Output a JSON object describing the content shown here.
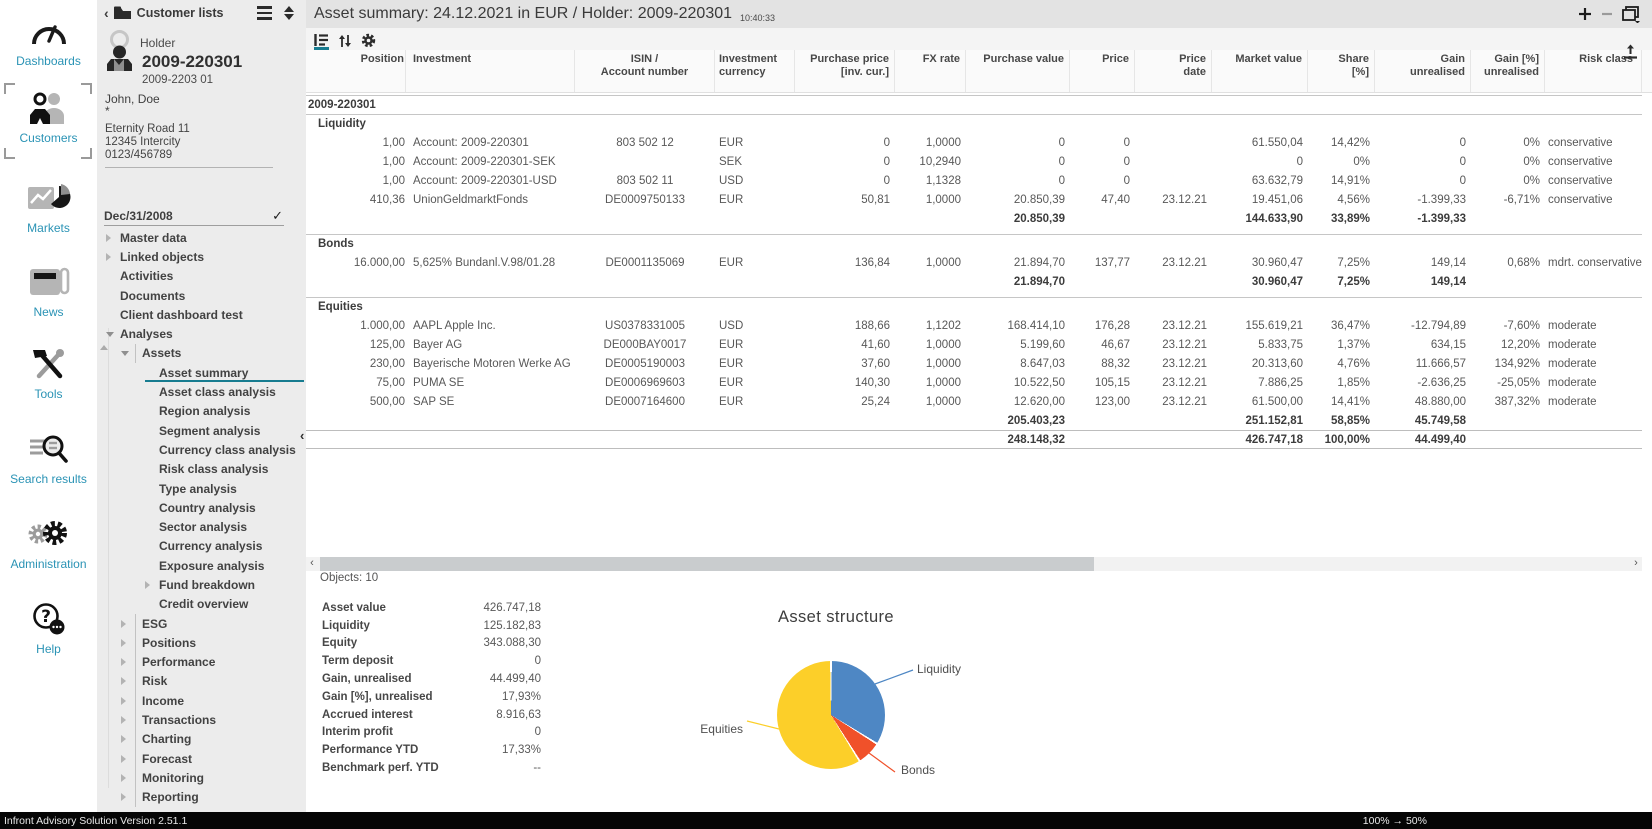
{
  "app": {
    "statusbar_left": "Infront Advisory Solution Version 2.51.1",
    "statusbar_right": "100% → 50%",
    "accent_teal": "#177c90",
    "rail_label_color": "#2a93b5"
  },
  "rail": {
    "active": "Customers",
    "items": [
      {
        "label": "Dashboards",
        "icon": "gauge-icon"
      },
      {
        "label": "Customers",
        "icon": "customers-icon"
      },
      {
        "label": "Markets",
        "icon": "markets-icon"
      },
      {
        "label": "News",
        "icon": "news-icon"
      },
      {
        "label": "Tools",
        "icon": "tools-icon"
      },
      {
        "label": "Search results",
        "icon": "search-icon"
      },
      {
        "label": "Administration",
        "icon": "gears-icon"
      },
      {
        "label": "Help",
        "icon": "help-icon"
      }
    ]
  },
  "customer_panel": {
    "header": {
      "title": "Customer lists"
    },
    "holder": {
      "type_label": "Holder",
      "id": "2009-220301",
      "subid": "2009-2203 01",
      "name": "John, Doe",
      "star": "*",
      "address1": "Eternity Road 11",
      "address2": "12345 Intercity",
      "phone": "0123/456789"
    },
    "date_item": {
      "label": "Dec/31/2008",
      "checked": "✓"
    },
    "tree": [
      {
        "label": "Master data",
        "level": 0,
        "expander": "collapsed"
      },
      {
        "label": "Linked objects",
        "level": 0,
        "expander": "collapsed"
      },
      {
        "label": "Activities",
        "level": 0,
        "expander": "none"
      },
      {
        "label": "Documents",
        "level": 0,
        "expander": "none"
      },
      {
        "label": "Client dashboard test",
        "level": 0,
        "expander": "none"
      },
      {
        "label": "Analyses",
        "level": 0,
        "expander": "expanded"
      },
      {
        "label": "Assets",
        "level": 1,
        "expander": "expanded"
      },
      {
        "label": "Asset summary",
        "level": 2,
        "expander": "none",
        "selected": true
      },
      {
        "label": "Asset class analysis",
        "level": 2,
        "expander": "none"
      },
      {
        "label": "Region analysis",
        "level": 2,
        "expander": "none"
      },
      {
        "label": "Segment analysis",
        "level": 2,
        "expander": "none"
      },
      {
        "label": "Currency class analysis",
        "level": 2,
        "expander": "none"
      },
      {
        "label": "Risk class analysis",
        "level": 2,
        "expander": "none"
      },
      {
        "label": "Type analysis",
        "level": 2,
        "expander": "none"
      },
      {
        "label": "Country analysis",
        "level": 2,
        "expander": "none"
      },
      {
        "label": "Sector analysis",
        "level": 2,
        "expander": "none"
      },
      {
        "label": "Currency analysis",
        "level": 2,
        "expander": "none"
      },
      {
        "label": "Exposure analysis",
        "level": 2,
        "expander": "none"
      },
      {
        "label": "Fund breakdown",
        "level": 2,
        "expander": "collapsed"
      },
      {
        "label": "Credit overview",
        "level": 2,
        "expander": "none"
      },
      {
        "label": "ESG",
        "level": 1,
        "expander": "collapsed"
      },
      {
        "label": "Positions",
        "level": 1,
        "expander": "collapsed"
      },
      {
        "label": "Performance",
        "level": 1,
        "expander": "collapsed"
      },
      {
        "label": "Risk",
        "level": 1,
        "expander": "collapsed"
      },
      {
        "label": "Income",
        "level": 1,
        "expander": "collapsed"
      },
      {
        "label": "Transactions",
        "level": 1,
        "expander": "collapsed"
      },
      {
        "label": "Charting",
        "level": 1,
        "expander": "collapsed"
      },
      {
        "label": "Forecast",
        "level": 1,
        "expander": "collapsed"
      },
      {
        "label": "Monitoring",
        "level": 1,
        "expander": "collapsed"
      },
      {
        "label": "Reporting",
        "level": 1,
        "expander": "collapsed"
      }
    ]
  },
  "main": {
    "title": "Asset summary: 24.12.2021 in EUR / Holder: 2009-220301",
    "timestamp": "10:40:33",
    "objects_count": "Objects: 10",
    "table": {
      "columns": [
        {
          "key": "position",
          "label": "Position"
        },
        {
          "key": "investment",
          "label": "Investment"
        },
        {
          "key": "isin",
          "label": "ISIN /\nAccount number"
        },
        {
          "key": "currency",
          "label": "Investment\ncurrency"
        },
        {
          "key": "purchase_price",
          "label": "Purchase price\n[inv. cur.]"
        },
        {
          "key": "fx_rate",
          "label": "FX rate"
        },
        {
          "key": "purchase_value",
          "label": "Purchase value"
        },
        {
          "key": "price",
          "label": "Price"
        },
        {
          "key": "price_date",
          "label": "Price\ndate"
        },
        {
          "key": "market_value",
          "label": "Market value"
        },
        {
          "key": "share",
          "label": "Share\n[%]"
        },
        {
          "key": "gain",
          "label": "Gain\nunrealised"
        },
        {
          "key": "gain_pct",
          "label": "Gain [%]\nunrealised"
        },
        {
          "key": "risk",
          "label": "Risk class"
        }
      ],
      "rows": [
        {
          "type": "account",
          "label": "2009-220301"
        },
        {
          "type": "group",
          "label": "Liquidity"
        },
        {
          "type": "data",
          "cells": {
            "position": "1,00",
            "investment": "Account: 2009-220301",
            "isin": "803 502 12",
            "currency": "EUR",
            "purchase_price": "0",
            "fx_rate": "1,0000",
            "purchase_value": "0",
            "price": "0",
            "price_date": "",
            "market_value": "61.550,04",
            "share": "14,42%",
            "gain": "0",
            "gain_pct": "0%",
            "risk": "conservative"
          }
        },
        {
          "type": "data",
          "cells": {
            "position": "1,00",
            "investment": "Account: 2009-220301-SEK",
            "isin": "",
            "currency": "SEK",
            "purchase_price": "0",
            "fx_rate": "10,2940",
            "purchase_value": "0",
            "price": "0",
            "price_date": "",
            "market_value": "0",
            "share": "0%",
            "gain": "0",
            "gain_pct": "0%",
            "risk": "conservative"
          }
        },
        {
          "type": "data",
          "cells": {
            "position": "1,00",
            "investment": "Account: 2009-220301-USD",
            "isin": "803 502 11",
            "currency": "USD",
            "purchase_price": "0",
            "fx_rate": "1,1328",
            "purchase_value": "0",
            "price": "0",
            "price_date": "",
            "market_value": "63.632,79",
            "share": "14,91%",
            "gain": "0",
            "gain_pct": "0%",
            "risk": "conservative"
          }
        },
        {
          "type": "data",
          "cells": {
            "position": "410,36",
            "investment": "UnionGeldmarktFonds",
            "isin": "DE0009750133",
            "currency": "EUR",
            "purchase_price": "50,81",
            "fx_rate": "1,0000",
            "purchase_value": "20.850,39",
            "price": "47,40",
            "price_date": "23.12.21",
            "market_value": "19.451,06",
            "share": "4,56%",
            "gain": "-1.399,33",
            "gain_pct": "-6,71%",
            "risk": "conservative"
          }
        },
        {
          "type": "subtotal",
          "cells": {
            "purchase_value": "20.850,39",
            "market_value": "144.633,90",
            "share": "33,89%",
            "gain": "-1.399,33"
          }
        },
        {
          "type": "group",
          "label": "Bonds",
          "gap": true
        },
        {
          "type": "data",
          "cells": {
            "position": "16.000,00",
            "investment": "5,625% Bundanl.V.98/01.28",
            "isin": "DE0001135069",
            "currency": "EUR",
            "purchase_price": "136,84",
            "fx_rate": "1,0000",
            "purchase_value": "21.894,70",
            "price": "137,77",
            "price_date": "23.12.21",
            "market_value": "30.960,47",
            "share": "7,25%",
            "gain": "149,14",
            "gain_pct": "0,68%",
            "risk": "mdrt. conservative"
          }
        },
        {
          "type": "subtotal",
          "cells": {
            "purchase_value": "21.894,70",
            "market_value": "30.960,47",
            "share": "7,25%",
            "gain": "149,14"
          }
        },
        {
          "type": "group",
          "label": "Equities",
          "gap": true
        },
        {
          "type": "data",
          "cells": {
            "position": "1.000,00",
            "investment": "AAPL Apple Inc.",
            "isin": "US0378331005",
            "currency": "USD",
            "purchase_price": "188,66",
            "fx_rate": "1,1202",
            "purchase_value": "168.414,10",
            "price": "176,28",
            "price_date": "23.12.21",
            "market_value": "155.619,21",
            "share": "36,47%",
            "gain": "-12.794,89",
            "gain_pct": "-7,60%",
            "risk": "moderate"
          }
        },
        {
          "type": "data",
          "cells": {
            "position": "125,00",
            "investment": "Bayer AG",
            "isin": "DE000BAY0017",
            "currency": "EUR",
            "purchase_price": "41,60",
            "fx_rate": "1,0000",
            "purchase_value": "5.199,60",
            "price": "46,67",
            "price_date": "23.12.21",
            "market_value": "5.833,75",
            "share": "1,37%",
            "gain": "634,15",
            "gain_pct": "12,20%",
            "risk": "moderate"
          }
        },
        {
          "type": "data",
          "cells": {
            "position": "230,00",
            "investment": "Bayerische Motoren Werke AG",
            "isin": "DE0005190003",
            "currency": "EUR",
            "purchase_price": "37,60",
            "fx_rate": "1,0000",
            "purchase_value": "8.647,03",
            "price": "88,32",
            "price_date": "23.12.21",
            "market_value": "20.313,60",
            "share": "4,76%",
            "gain": "11.666,57",
            "gain_pct": "134,92%",
            "risk": "moderate"
          }
        },
        {
          "type": "data",
          "cells": {
            "position": "75,00",
            "investment": "PUMA SE",
            "isin": "DE0006969603",
            "currency": "EUR",
            "purchase_price": "140,30",
            "fx_rate": "1,0000",
            "purchase_value": "10.522,50",
            "price": "105,15",
            "price_date": "23.12.21",
            "market_value": "7.886,25",
            "share": "1,85%",
            "gain": "-2.636,25",
            "gain_pct": "-25,05%",
            "risk": "moderate"
          }
        },
        {
          "type": "data",
          "cells": {
            "position": "500,00",
            "investment": "SAP SE",
            "isin": "DE0007164600",
            "currency": "EUR",
            "purchase_price": "25,24",
            "fx_rate": "1,0000",
            "purchase_value": "12.620,00",
            "price": "123,00",
            "price_date": "23.12.21",
            "market_value": "61.500,00",
            "share": "14,41%",
            "gain": "48.880,00",
            "gain_pct": "387,32%",
            "risk": "moderate"
          }
        },
        {
          "type": "subtotal",
          "cells": {
            "purchase_value": "205.403,23",
            "market_value": "251.152,81",
            "share": "58,85%",
            "gain": "45.749,58"
          }
        },
        {
          "type": "total",
          "cells": {
            "purchase_value": "248.148,32",
            "market_value": "426.747,18",
            "share": "100,00%",
            "gain": "44.499,40"
          }
        }
      ]
    },
    "summary": {
      "rows": [
        {
          "label": "Asset value",
          "value": "426.747,18"
        },
        {
          "label": "Liquidity",
          "value": "125.182,83"
        },
        {
          "label": "Equity",
          "value": "343.088,30"
        },
        {
          "label": "Term deposit",
          "value": "0"
        },
        {
          "label": "Gain, unrealised",
          "value": "44.499,40"
        },
        {
          "label": "Gain [%], unrealised",
          "value": "17,93%"
        },
        {
          "label": "Accrued interest",
          "value": "8.916,63"
        },
        {
          "label": "Interim profit",
          "value": "0"
        },
        {
          "label": "Performance YTD",
          "value": "17,33%"
        },
        {
          "label": "Benchmark perf. YTD",
          "value": "--"
        }
      ]
    }
  },
  "chart_data": {
    "type": "pie",
    "title": "Asset structure",
    "labels": [
      "Liquidity",
      "Bonds",
      "Equities"
    ],
    "values": [
      33.89,
      7.25,
      58.85
    ],
    "unit": "% share of market value",
    "market_values_eur": [
      144633.9,
      30960.47,
      251152.81
    ],
    "colors": [
      "#4e87c4",
      "#f0512a",
      "#fccf29"
    ],
    "legend_position": "callout-labels",
    "start_angle_deg": 0,
    "direction": "clockwise"
  }
}
